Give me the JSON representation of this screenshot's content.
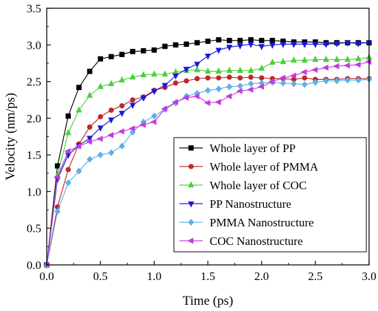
{
  "chart_data": {
    "type": "line",
    "xlabel": "Time (ps)",
    "ylabel": "Velocity (nm/ps)",
    "xlim": [
      0.0,
      3.0
    ],
    "ylim": [
      0.0,
      3.5
    ],
    "xticks": [
      "0.0",
      "0.5",
      "1.0",
      "1.5",
      "2.0",
      "2.5",
      "3.0"
    ],
    "yticks": [
      "0.0",
      "0.5",
      "1.0",
      "1.5",
      "2.0",
      "2.5",
      "3.0",
      "3.5"
    ],
    "legend_position": "lower-right",
    "x": [
      0.0,
      0.1,
      0.2,
      0.3,
      0.4,
      0.5,
      0.6,
      0.7,
      0.8,
      0.9,
      1.0,
      1.1,
      1.2,
      1.3,
      1.4,
      1.5,
      1.6,
      1.7,
      1.8,
      1.9,
      2.0,
      2.1,
      2.2,
      2.3,
      2.4,
      2.5,
      2.6,
      2.7,
      2.8,
      2.9,
      3.0
    ],
    "series": [
      {
        "name": "Whole layer of PP",
        "color": "#000000",
        "marker": "square",
        "values": [
          0.0,
          1.35,
          2.03,
          2.42,
          2.64,
          2.81,
          2.84,
          2.87,
          2.91,
          2.92,
          2.93,
          2.98,
          3.0,
          3.01,
          3.03,
          3.05,
          3.07,
          3.06,
          3.06,
          3.07,
          3.06,
          3.06,
          3.05,
          3.04,
          3.04,
          3.04,
          3.03,
          3.03,
          3.03,
          3.03,
          3.03
        ]
      },
      {
        "name": "Whole layer of PMMA",
        "color": "#c0282a",
        "marker": "circle",
        "values": [
          0.0,
          0.79,
          1.3,
          1.65,
          1.88,
          2.02,
          2.11,
          2.17,
          2.25,
          2.29,
          2.38,
          2.42,
          2.48,
          2.51,
          2.54,
          2.55,
          2.55,
          2.56,
          2.55,
          2.56,
          2.55,
          2.54,
          2.54,
          2.53,
          2.55,
          2.53,
          2.53,
          2.53,
          2.54,
          2.54,
          2.54
        ]
      },
      {
        "name": "Whole layer of COC",
        "color": "#4ccf3c",
        "marker": "triangle-up",
        "values": [
          0.0,
          1.22,
          1.8,
          2.11,
          2.31,
          2.43,
          2.47,
          2.52,
          2.56,
          2.59,
          2.6,
          2.6,
          2.63,
          2.65,
          2.66,
          2.64,
          2.64,
          2.65,
          2.65,
          2.65,
          2.68,
          2.76,
          2.77,
          2.79,
          2.79,
          2.8,
          2.8,
          2.8,
          2.8,
          2.81,
          2.83
        ]
      },
      {
        "name": "PP Nanostructure",
        "color": "#1a1ad6",
        "marker": "triangle-down",
        "values": [
          0.0,
          1.17,
          1.5,
          1.63,
          1.73,
          1.87,
          1.98,
          2.07,
          2.18,
          2.28,
          2.37,
          2.45,
          2.58,
          2.67,
          2.74,
          2.85,
          2.93,
          2.97,
          2.99,
          3.01,
          2.98,
          3.0,
          3.01,
          3.01,
          3.01,
          3.01,
          3.01,
          3.02,
          3.03,
          3.02,
          3.03
        ]
      },
      {
        "name": "PMMA Nanostructure",
        "color": "#5bb2e6",
        "marker": "diamond",
        "values": [
          0.0,
          0.73,
          1.12,
          1.28,
          1.44,
          1.5,
          1.53,
          1.62,
          1.81,
          1.95,
          2.03,
          2.12,
          2.21,
          2.3,
          2.34,
          2.38,
          2.4,
          2.43,
          2.44,
          2.47,
          2.48,
          2.49,
          2.48,
          2.47,
          2.46,
          2.49,
          2.51,
          2.51,
          2.52,
          2.52,
          2.53
        ]
      },
      {
        "name": "COC Nanostructure",
        "color": "#c43adf",
        "marker": "triangle-left",
        "values": [
          0.0,
          1.2,
          1.55,
          1.62,
          1.68,
          1.72,
          1.77,
          1.82,
          1.86,
          1.91,
          1.95,
          2.13,
          2.22,
          2.28,
          2.3,
          2.21,
          2.22,
          2.3,
          2.37,
          2.39,
          2.43,
          2.5,
          2.55,
          2.58,
          2.63,
          2.66,
          2.69,
          2.71,
          2.72,
          2.73,
          2.77
        ]
      }
    ]
  }
}
